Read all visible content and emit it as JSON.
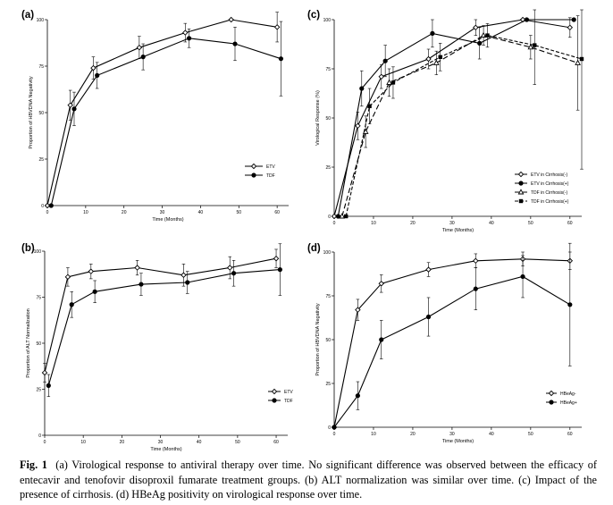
{
  "chart_data": [
    {
      "id": "a",
      "panel_label": "(a)",
      "type": "line",
      "xlabel": "Time (Months)",
      "ylabel": "Proportion of HBVDNA Negativity",
      "xlim": [
        0,
        63
      ],
      "ylim": [
        0,
        100
      ],
      "xticks": [
        "0",
        "10",
        "20",
        "30",
        "40",
        "50",
        "60"
      ],
      "yticks": [
        "0",
        "25",
        "50",
        "75",
        "100"
      ],
      "legend_position": "lower-right",
      "series": [
        {
          "name": "ETV",
          "marker": "open-diamond",
          "dash": "solid",
          "x": [
            0,
            6,
            12,
            24,
            36,
            48,
            60
          ],
          "y": [
            0,
            54,
            74,
            85,
            93,
            100,
            96
          ],
          "err": [
            0,
            8,
            6,
            6,
            5,
            0,
            8
          ]
        },
        {
          "name": "TDF",
          "marker": "filled-circle",
          "dash": "solid",
          "x": [
            1,
            7,
            13,
            25,
            37,
            49,
            61
          ],
          "y": [
            0,
            52,
            70,
            80,
            90,
            87,
            79
          ],
          "err": [
            0,
            9,
            7,
            7,
            5,
            9,
            20
          ]
        }
      ]
    },
    {
      "id": "b",
      "panel_label": "(b)",
      "type": "line",
      "xlabel": "Time (Months)",
      "ylabel": "Proportion of ALT Normalization",
      "xlim": [
        0,
        63
      ],
      "ylim": [
        0,
        100
      ],
      "xticks": [
        "0",
        "10",
        "20",
        "30",
        "40",
        "50",
        "60"
      ],
      "yticks": [
        "0",
        "25",
        "50",
        "75",
        "100"
      ],
      "legend_position": "lower-right",
      "series": [
        {
          "name": "ETV",
          "marker": "open-diamond",
          "dash": "solid",
          "x": [
            0,
            6,
            12,
            24,
            36,
            48,
            60
          ],
          "y": [
            34,
            86,
            89,
            91,
            87,
            91,
            96
          ],
          "err": [
            5,
            5,
            4,
            4,
            6,
            6,
            5
          ]
        },
        {
          "name": "TDF",
          "marker": "filled-circle",
          "dash": "solid",
          "x": [
            1,
            7,
            13,
            25,
            37,
            49,
            61
          ],
          "y": [
            27,
            71,
            78,
            82,
            83,
            88,
            90
          ],
          "err": [
            6,
            7,
            6,
            6,
            6,
            7,
            14
          ]
        }
      ]
    },
    {
      "id": "c",
      "panel_label": "(c)",
      "type": "line",
      "xlabel": "Time (Months)",
      "ylabel": "Virological Response (%)",
      "xlim": [
        0,
        63
      ],
      "ylim": [
        0,
        100
      ],
      "xticks": [
        "0",
        "10",
        "20",
        "30",
        "40",
        "50",
        "60"
      ],
      "yticks": [
        "0",
        "25",
        "50",
        "75",
        "100"
      ],
      "legend_position": "lower-right",
      "series": [
        {
          "name": "ETV in Cirrhosis(-)",
          "marker": "open-diamond",
          "dash": "solid",
          "x": [
            0,
            6,
            12,
            24,
            36,
            48,
            60
          ],
          "y": [
            0,
            46,
            71,
            80,
            96,
            100,
            96
          ],
          "err": [
            0,
            7,
            6,
            5,
            4,
            0,
            5
          ]
        },
        {
          "name": "ETV in Cirrhosis(+)",
          "marker": "filled-circle",
          "dash": "solid",
          "x": [
            1,
            7,
            13,
            25,
            37,
            49,
            61
          ],
          "y": [
            0,
            65,
            79,
            93,
            88,
            100,
            100
          ],
          "err": [
            0,
            9,
            8,
            7,
            8,
            0,
            0
          ]
        },
        {
          "name": "TDF in Cirrhosis(-)",
          "marker": "open-triangle",
          "dash": "long-dash",
          "x": [
            2,
            8,
            14,
            26,
            38,
            50,
            62
          ],
          "y": [
            0,
            43,
            68,
            78,
            92,
            86,
            78
          ],
          "err": [
            0,
            8,
            7,
            6,
            5,
            6,
            24
          ]
        },
        {
          "name": "TDF in Cirrhosis(+)",
          "marker": "filled-square",
          "dash": "dash",
          "x": [
            3,
            9,
            15,
            27,
            39,
            51,
            63
          ],
          "y": [
            0,
            56,
            68,
            81,
            92,
            87,
            80
          ],
          "err": [
            0,
            9,
            8,
            7,
            6,
            20,
            56
          ]
        }
      ]
    },
    {
      "id": "d",
      "panel_label": "(d)",
      "type": "line",
      "xlabel": "Time (Months)",
      "ylabel": "Proportion of HBVDNA Negativity",
      "xlim": [
        0,
        63
      ],
      "ylim": [
        0,
        100
      ],
      "xticks": [
        "0",
        "10",
        "20",
        "30",
        "40",
        "50",
        "60"
      ],
      "yticks": [
        "0",
        "25",
        "50",
        "75",
        "100"
      ],
      "legend_position": "lower-right",
      "series": [
        {
          "name": "HBeAg-",
          "marker": "open-diamond",
          "dash": "solid",
          "x": [
            0,
            6,
            12,
            24,
            36,
            48,
            60
          ],
          "y": [
            0,
            67,
            82,
            90,
            95,
            96,
            95
          ],
          "err": [
            0,
            6,
            5,
            4,
            4,
            4,
            5
          ]
        },
        {
          "name": "HBeAg+",
          "marker": "filled-circle",
          "dash": "solid",
          "x": [
            0,
            6,
            12,
            24,
            36,
            48,
            60
          ],
          "y": [
            0,
            18,
            50,
            63,
            79,
            86,
            70
          ],
          "err": [
            0,
            8,
            11,
            11,
            12,
            12,
            35
          ]
        }
      ]
    }
  ],
  "caption": {
    "label": "Fig. 1",
    "text": "(a) Virological response to antiviral therapy over time. No significant difference was observed between the efficacy of entecavir and tenofovir disoproxil fumarate treatment groups. (b) ALT normalization was similar over time. (c) Impact of the presence of cirrhosis. (d) HBeAg positivity on virological response over time."
  }
}
